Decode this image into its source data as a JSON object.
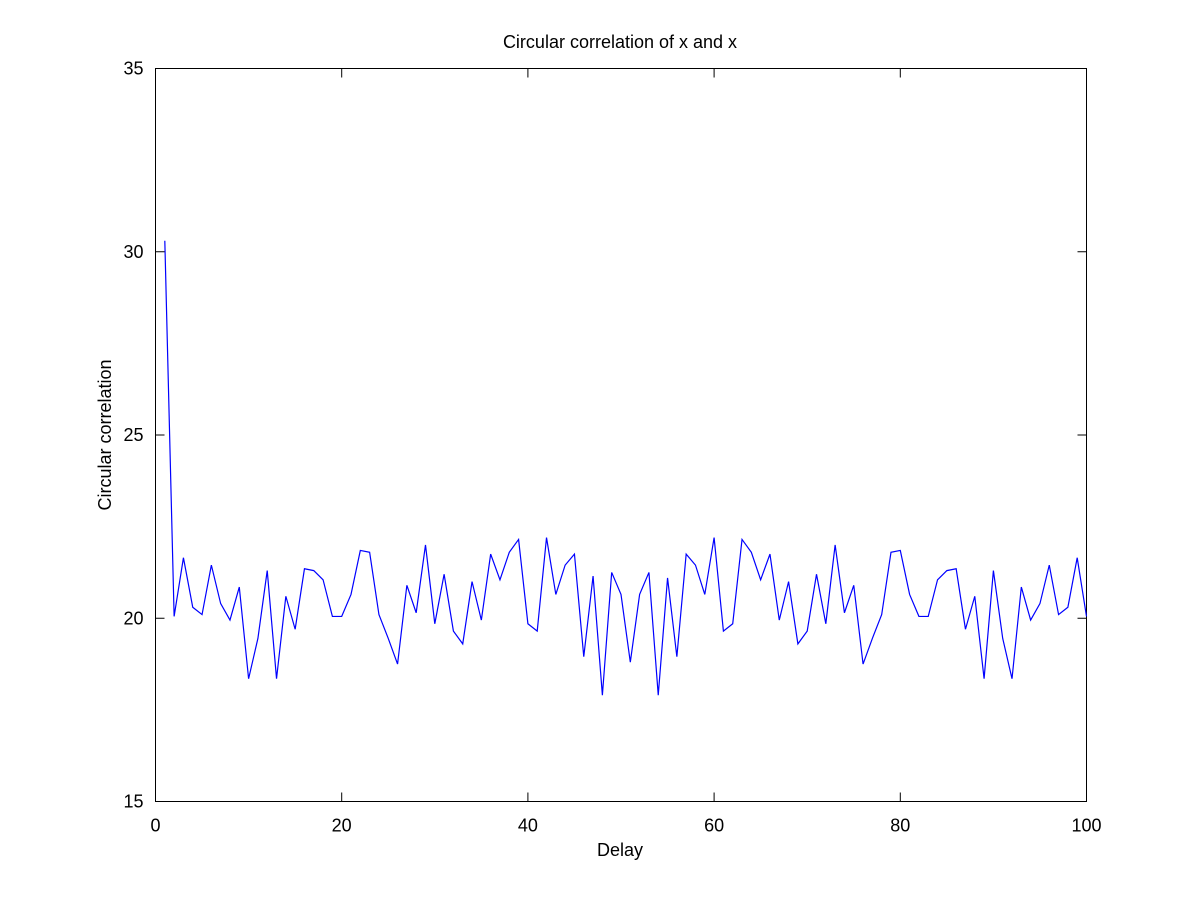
{
  "chart_data": {
    "type": "line",
    "title": "Circular correlation of x and x",
    "xlabel": "Delay",
    "ylabel": "Circular correlation",
    "xlim": [
      0,
      100
    ],
    "ylim": [
      15,
      35
    ],
    "xticks": [
      0,
      20,
      40,
      60,
      80,
      100
    ],
    "yticks": [
      15,
      20,
      25,
      30,
      35
    ],
    "xtick_labels": [
      "0",
      "20",
      "40",
      "60",
      "80",
      "100"
    ],
    "ytick_labels": [
      "15",
      "20",
      "25",
      "30",
      "35"
    ],
    "grid": false,
    "legend": "none",
    "series": [
      {
        "color": "#0000ff",
        "x": [
          1,
          2,
          3,
          4,
          5,
          6,
          7,
          8,
          9,
          10,
          11,
          12,
          13,
          14,
          15,
          16,
          17,
          18,
          19,
          20,
          21,
          22,
          23,
          24,
          25,
          26,
          27,
          28,
          29,
          30,
          31,
          32,
          33,
          34,
          35,
          36,
          37,
          38,
          39,
          40,
          41,
          42,
          43,
          44,
          45,
          46,
          47,
          48,
          49,
          50,
          51,
          52,
          53,
          54,
          55,
          56,
          57,
          58,
          59,
          60,
          61,
          62,
          63,
          64,
          65,
          66,
          67,
          68,
          69,
          70,
          71,
          72,
          73,
          74,
          75,
          76,
          77,
          78,
          79,
          80,
          81,
          82,
          83,
          84,
          85,
          86,
          87,
          88,
          89,
          90,
          91,
          92,
          93,
          94,
          95,
          96,
          97,
          98,
          99,
          100
        ],
        "y": [
          30.3,
          20.05,
          21.65,
          20.3,
          20.1,
          21.45,
          20.4,
          19.95,
          20.85,
          18.35,
          19.45,
          21.3,
          18.35,
          20.6,
          19.7,
          21.35,
          21.3,
          21.05,
          20.05,
          20.05,
          20.65,
          21.85,
          21.8,
          20.1,
          19.45,
          18.75,
          20.9,
          20.15,
          22.0,
          19.85,
          21.2,
          19.65,
          19.3,
          21.0,
          19.95,
          21.75,
          21.05,
          21.8,
          22.15,
          19.85,
          19.65,
          22.2,
          20.65,
          21.45,
          21.75,
          18.95,
          21.15,
          17.9,
          21.25,
          20.65,
          18.8,
          20.65,
          21.25,
          17.9,
          21.1,
          18.95,
          21.75,
          21.45,
          20.65,
          22.2,
          19.65,
          19.85,
          22.15,
          21.8,
          21.05,
          21.75,
          19.95,
          21.0,
          19.3,
          19.65,
          21.2,
          19.85,
          22.0,
          20.15,
          20.9,
          18.75,
          19.45,
          20.1,
          21.8,
          21.85,
          20.65,
          20.05,
          20.05,
          21.05,
          21.3,
          21.35,
          19.7,
          20.6,
          18.35,
          21.3,
          19.45,
          18.35,
          20.85,
          19.95,
          20.4,
          21.45,
          20.1,
          20.3,
          21.65,
          20.05
        ]
      }
    ]
  }
}
